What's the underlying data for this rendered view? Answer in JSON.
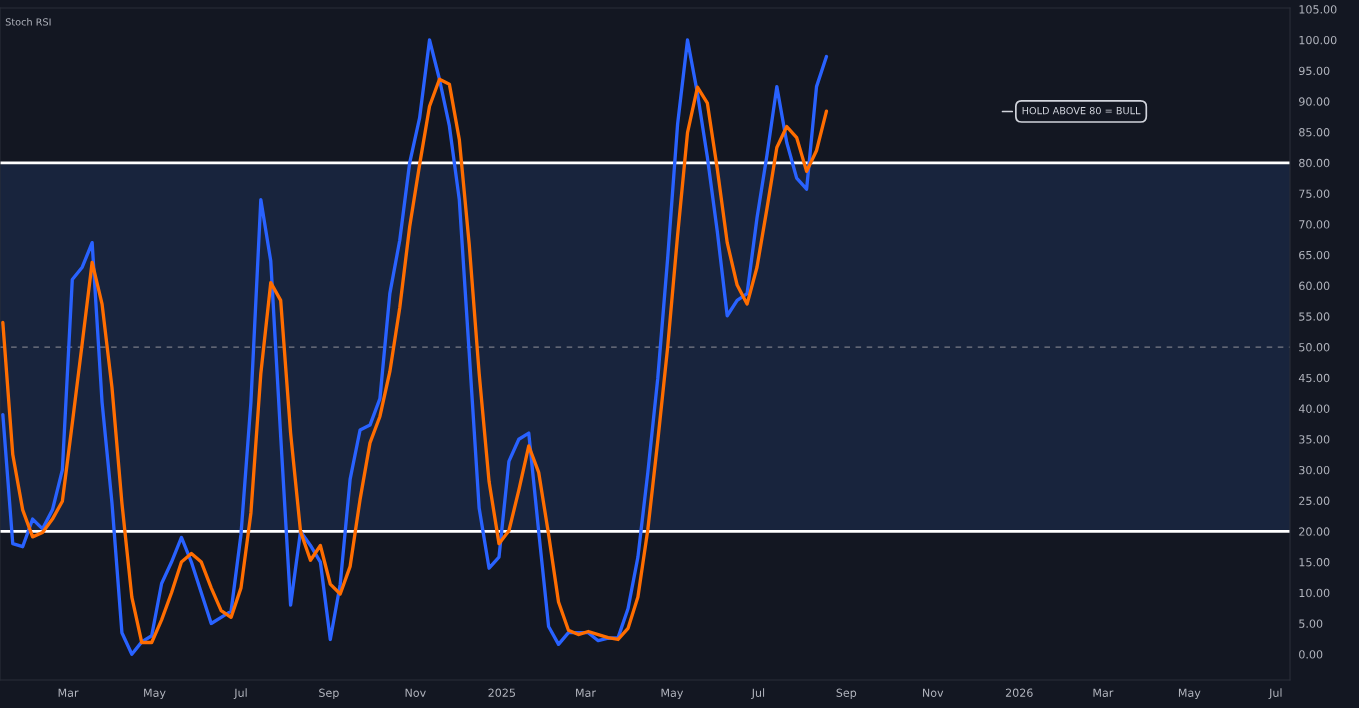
{
  "chart_data": {
    "type": "line",
    "title": "Stoch RSI",
    "x": [
      "2024-01-15",
      "2024-01-22",
      "2024-01-29",
      "2024-02-05",
      "2024-02-12",
      "2024-02-19",
      "2024-02-26",
      "2024-03-04",
      "2024-03-11",
      "2024-03-18",
      "2024-03-25",
      "2024-04-01",
      "2024-04-08",
      "2024-04-15",
      "2024-04-22",
      "2024-04-29",
      "2024-05-06",
      "2024-05-13",
      "2024-05-20",
      "2024-05-27",
      "2024-06-03",
      "2024-06-10",
      "2024-06-17",
      "2024-06-24",
      "2024-07-01",
      "2024-07-08",
      "2024-07-15",
      "2024-07-22",
      "2024-07-29",
      "2024-08-05",
      "2024-08-12",
      "2024-08-19",
      "2024-08-26",
      "2024-09-02",
      "2024-09-09",
      "2024-09-16",
      "2024-09-23",
      "2024-09-30",
      "2024-10-07",
      "2024-10-14",
      "2024-10-21",
      "2024-10-28",
      "2024-11-04",
      "2024-11-11",
      "2024-11-18",
      "2024-11-25",
      "2024-12-02",
      "2024-12-09",
      "2024-12-16",
      "2024-12-23",
      "2024-12-30",
      "2025-01-06",
      "2025-01-13",
      "2025-01-20",
      "2025-01-27",
      "2025-02-03",
      "2025-02-10",
      "2025-02-17",
      "2025-02-24",
      "2025-03-03",
      "2025-03-10",
      "2025-03-17",
      "2025-03-24",
      "2025-03-31",
      "2025-04-07",
      "2025-04-14",
      "2025-04-21",
      "2025-04-28",
      "2025-05-05",
      "2025-05-12",
      "2025-05-19",
      "2025-05-26",
      "2025-06-02",
      "2025-06-09",
      "2025-06-16",
      "2025-06-23",
      "2025-06-30",
      "2025-07-07",
      "2025-07-14",
      "2025-07-21",
      "2025-07-28",
      "2025-08-04",
      "2025-08-11",
      "2025-08-18"
    ],
    "series": [
      {
        "color": "#2962ff",
        "values": [
          39,
          18,
          17.5,
          22,
          20.4,
          23.5,
          30,
          61,
          63,
          67,
          41,
          24.6,
          3.5,
          0,
          2,
          3,
          11.5,
          15,
          19,
          15,
          10,
          5,
          6,
          7,
          19.5,
          41,
          74,
          64,
          35.5,
          8,
          20,
          17.7,
          15,
          2.4,
          11.4,
          28.5,
          36.5,
          37.3,
          41.6,
          58.7,
          67.4,
          80,
          87.3,
          100,
          93.6,
          86,
          74,
          49,
          23.8,
          14,
          15.8,
          31.4,
          35,
          36,
          20,
          4.5,
          1.6,
          3.5,
          3.5,
          3.5,
          2.2,
          2.6,
          2.7,
          7.4,
          15.8,
          29.6,
          44.9,
          64.5,
          86.3,
          100,
          91.3,
          80.9,
          68.8,
          55.1,
          57.6,
          58.7,
          71,
          81.2,
          92.4,
          83.3,
          77.5,
          75.7,
          92.4,
          97.3
        ]
      },
      {
        "color": "#ff6d00",
        "values": [
          54,
          32.5,
          23.5,
          19.1,
          19.8,
          22,
          24.9,
          37.6,
          50.6,
          63.8,
          57,
          43.4,
          24.6,
          9.3,
          1.9,
          1.9,
          5.6,
          10,
          15,
          16.4,
          15,
          10.8,
          7.1,
          6,
          10.8,
          23,
          45.7,
          60.5,
          57.6,
          36,
          20,
          15.3,
          17.7,
          11.4,
          9.8,
          14.3,
          25.2,
          34.4,
          38.7,
          46,
          56.4,
          69.6,
          79.7,
          89.2,
          93.6,
          92.8,
          83.8,
          66.7,
          45.7,
          28.1,
          18,
          20.1,
          26.7,
          33.9,
          29.6,
          19.5,
          8.5,
          3.9,
          3.2,
          3.7,
          3.2,
          2.7,
          2.4,
          4.2,
          9.3,
          20.3,
          34.7,
          50,
          68.2,
          84.9,
          92.3,
          89.7,
          79,
          67,
          60.1,
          57,
          63,
          72.5,
          82.5,
          85.9,
          84.1,
          78.6,
          82,
          88.4
        ]
      }
    ],
    "xlim": [
      "2024-01-13",
      "2026-07-11"
    ],
    "xticks": [
      {
        "value": "2024-03-01",
        "label": "Mar"
      },
      {
        "value": "2024-05-01",
        "label": "May"
      },
      {
        "value": "2024-07-01",
        "label": "Jul"
      },
      {
        "value": "2024-09-01",
        "label": "Sep"
      },
      {
        "value": "2024-11-01",
        "label": "Nov"
      },
      {
        "value": "2025-01-01",
        "label": "2025"
      },
      {
        "value": "2025-03-01",
        "label": "Mar"
      },
      {
        "value": "2025-05-01",
        "label": "May"
      },
      {
        "value": "2025-07-01",
        "label": "Jul"
      },
      {
        "value": "2025-09-01",
        "label": "Sep"
      },
      {
        "value": "2025-11-01",
        "label": "Nov"
      },
      {
        "value": "2026-01-01",
        "label": "2026"
      },
      {
        "value": "2026-03-01",
        "label": "Mar"
      },
      {
        "value": "2026-05-01",
        "label": "May"
      },
      {
        "value": "2026-07-01",
        "label": "Jul"
      }
    ],
    "ylim": [
      -4.2,
      105.2
    ],
    "yticks": [
      {
        "value": 0,
        "label": "0.00"
      },
      {
        "value": 5,
        "label": "5.00"
      },
      {
        "value": 10,
        "label": "10.00"
      },
      {
        "value": 15,
        "label": "15.00"
      },
      {
        "value": 20,
        "label": "20.00"
      },
      {
        "value": 25,
        "label": "25.00"
      },
      {
        "value": 30,
        "label": "30.00"
      },
      {
        "value": 35,
        "label": "35.00"
      },
      {
        "value": 40,
        "label": "40.00"
      },
      {
        "value": 45,
        "label": "45.00"
      },
      {
        "value": 50,
        "label": "50.00"
      },
      {
        "value": 55,
        "label": "55.00"
      },
      {
        "value": 60,
        "label": "60.00"
      },
      {
        "value": 65,
        "label": "65.00"
      },
      {
        "value": 70,
        "label": "70.00"
      },
      {
        "value": 75,
        "label": "75.00"
      },
      {
        "value": 80,
        "label": "80.00"
      },
      {
        "value": 85,
        "label": "85.00"
      },
      {
        "value": 90,
        "label": "90.00"
      },
      {
        "value": 95,
        "label": "95.00"
      },
      {
        "value": 100,
        "label": "100.00"
      },
      {
        "value": 105,
        "label": "105.00"
      }
    ],
    "ref_lines": [
      {
        "axis": "y",
        "value": 80,
        "color": "#ffffff",
        "line_style": "solid"
      },
      {
        "axis": "y",
        "value": 50,
        "color": "#787b86",
        "line_style": "dashed"
      },
      {
        "axis": "y",
        "value": 20,
        "color": "#ffffff",
        "line_style": "solid"
      }
    ],
    "bands": [
      {
        "axis": "y",
        "from": 20,
        "to": 80,
        "color": "#18243d"
      }
    ],
    "annotations": [
      "HOLD ABOVE 80 = BULL"
    ],
    "grid": false,
    "legend": false,
    "marker": "none",
    "line_style": "solid"
  }
}
